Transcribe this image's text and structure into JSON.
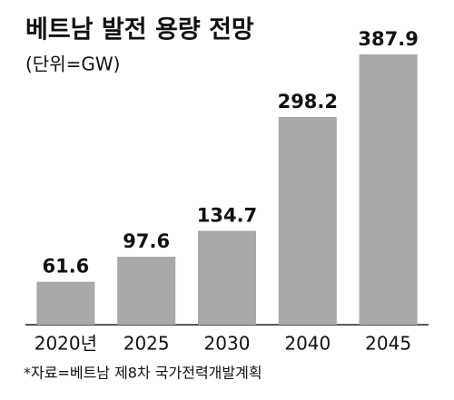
{
  "chart_data": {
    "type": "bar",
    "title": "베트남 발전 용량 전망",
    "subtitle": "(단위=GW)",
    "categories": [
      "2020년",
      "2025",
      "2030",
      "2040",
      "2045"
    ],
    "values": [
      61.6,
      97.6,
      134.7,
      298.2,
      387.9
    ],
    "color": "#a8a8a8",
    "source": "*자료=베트남 제8차 국가전력개발계획"
  }
}
